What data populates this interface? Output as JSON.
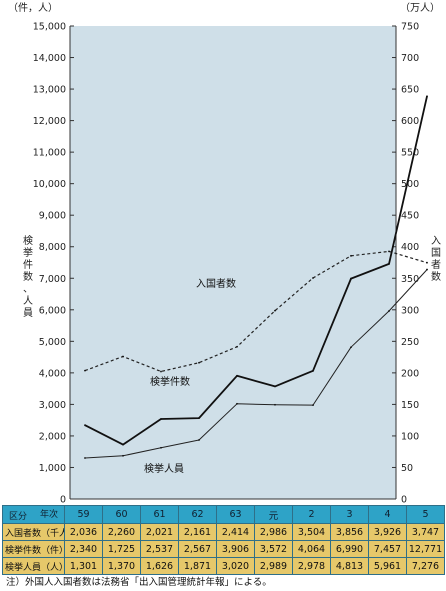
{
  "chart_data": {
    "type": "line",
    "categories": [
      "59",
      "60",
      "61",
      "62",
      "63",
      "元",
      "2",
      "3",
      "4",
      "5"
    ],
    "left_unit": "（件，人）",
    "right_unit": "（万人）",
    "left_axis_label": "検挙件数、人員",
    "right_axis_label": "入国者数",
    "left_ylim": [
      0,
      15000
    ],
    "right_ylim": [
      0,
      750
    ],
    "left_ticks": [
      "0",
      "1,000",
      "2,000",
      "3,000",
      "4,000",
      "5,000",
      "6,000",
      "7,000",
      "8,000",
      "9,000",
      "10,000",
      "11,000",
      "12,000",
      "13,000",
      "14,000",
      "15,000"
    ],
    "right_ticks": [
      "0",
      "50",
      "100",
      "150",
      "200",
      "250",
      "300",
      "350",
      "400",
      "450",
      "500",
      "550",
      "600",
      "650",
      "700",
      "750"
    ],
    "series": [
      {
        "name": "入国者数",
        "axis": "right",
        "style": "dashed",
        "values": [
          203.6,
          226.0,
          202.1,
          216.1,
          241.4,
          298.6,
          350.4,
          385.6,
          392.6,
          374.7
        ]
      },
      {
        "name": "検挙件数",
        "axis": "left",
        "style": "solid-bold",
        "values": [
          2340,
          1725,
          2537,
          2567,
          3906,
          3572,
          4064,
          6990,
          7457,
          12771
        ]
      },
      {
        "name": "検挙人員",
        "axis": "left",
        "style": "solid-thin",
        "values": [
          1301,
          1370,
          1626,
          1871,
          3020,
          2989,
          2978,
          4813,
          5961,
          7276
        ]
      }
    ],
    "grid": false,
    "background": "#cfdfe8"
  },
  "table": {
    "corner_top": "年次",
    "corner_bottom": "区分",
    "rows": [
      {
        "label": "入国者数（千人）",
        "values": [
          "2,036",
          "2,260",
          "2,021",
          "2,161",
          "2,414",
          "2,986",
          "3,504",
          "3,856",
          "3,926",
          "3,747"
        ]
      },
      {
        "label": "検挙件数（件）",
        "values": [
          "2,340",
          "1,725",
          "2,537",
          "2,567",
          "3,906",
          "3,572",
          "4,064",
          "6,990",
          "7,457",
          "12,771"
        ]
      },
      {
        "label": "検挙人員（人）",
        "values": [
          "1,301",
          "1,370",
          "1,626",
          "1,871",
          "3,020",
          "2,989",
          "2,978",
          "4,813",
          "5,961",
          "7,276"
        ]
      }
    ]
  },
  "note": "注）外国人入国者数は法務省「出入国管理統計年報」による。"
}
